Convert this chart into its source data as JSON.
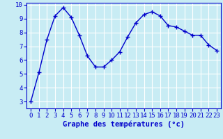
{
  "x": [
    0,
    1,
    2,
    3,
    4,
    5,
    6,
    7,
    8,
    9,
    10,
    11,
    12,
    13,
    14,
    15,
    16,
    17,
    18,
    19,
    20,
    21,
    22,
    23
  ],
  "y": [
    3.0,
    5.1,
    7.5,
    9.2,
    9.8,
    9.1,
    7.8,
    6.3,
    5.5,
    5.5,
    6.0,
    6.6,
    7.7,
    8.7,
    9.3,
    9.5,
    9.2,
    8.5,
    8.4,
    8.1,
    7.8,
    7.8,
    7.1,
    6.7
  ],
  "xlabel": "Graphe des températures (°c)",
  "ylim": [
    2.5,
    10.15
  ],
  "xlim": [
    -0.5,
    23.5
  ],
  "yticks": [
    3,
    4,
    5,
    6,
    7,
    8,
    9,
    10
  ],
  "xticks": [
    0,
    1,
    2,
    3,
    4,
    5,
    6,
    7,
    8,
    9,
    10,
    11,
    12,
    13,
    14,
    15,
    16,
    17,
    18,
    19,
    20,
    21,
    22,
    23
  ],
  "line_color": "#0000cc",
  "marker": "+",
  "marker_size": 4,
  "bg_color": "#c8ecf4",
  "plot_bg": "#c8ecf4",
  "grid_color": "#ffffff",
  "tick_color": "#0000cc",
  "tick_fontsize": 6.5,
  "xlabel_fontsize": 7.5,
  "xlabel_color": "#0000cc",
  "linewidth": 1.0
}
